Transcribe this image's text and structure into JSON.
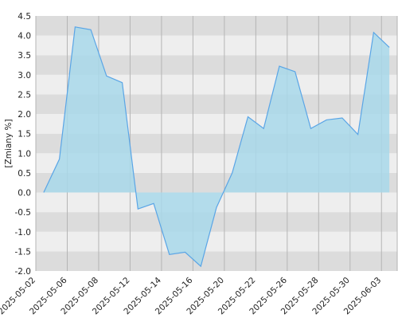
{
  "chart_data": {
    "type": "area",
    "y_label": "[Zmiany %]",
    "x_tick_labels": [
      "2025-05-02",
      "2025-05-06",
      "2025-05-08",
      "2025-05-12",
      "2025-05-14",
      "2025-05-16",
      "2025-05-20",
      "2025-05-22",
      "2025-05-26",
      "2025-05-28",
      "2025-05-30",
      "2025-06-03"
    ],
    "values": [
      0.0,
      0.85,
      4.22,
      4.15,
      2.97,
      2.8,
      -0.42,
      -0.28,
      -1.58,
      -1.52,
      -1.88,
      -0.38,
      0.5,
      1.93,
      1.63,
      3.22,
      3.08,
      1.63,
      1.85,
      1.9,
      1.48,
      4.08,
      3.7
    ],
    "color": "#5aa5e6",
    "fill": "#a8d8ea",
    "ylim": [
      -2.0,
      4.5
    ],
    "yticks": [
      {
        "value": -2.0,
        "label": "-2.0"
      },
      -1.5,
      {
        "value": -1.0,
        "label": "-1.0"
      },
      -0.5,
      {
        "value": 0.0,
        "label": "0.0"
      },
      0.5,
      {
        "value": 1.0,
        "label": "1.0"
      },
      1.5,
      {
        "value": 2.0,
        "label": "2.0"
      },
      2.5,
      {
        "value": 3.0,
        "label": "3.0"
      },
      3.5,
      {
        "value": 4.0,
        "label": "4.0"
      },
      4.5
    ],
    "grid": true
  }
}
